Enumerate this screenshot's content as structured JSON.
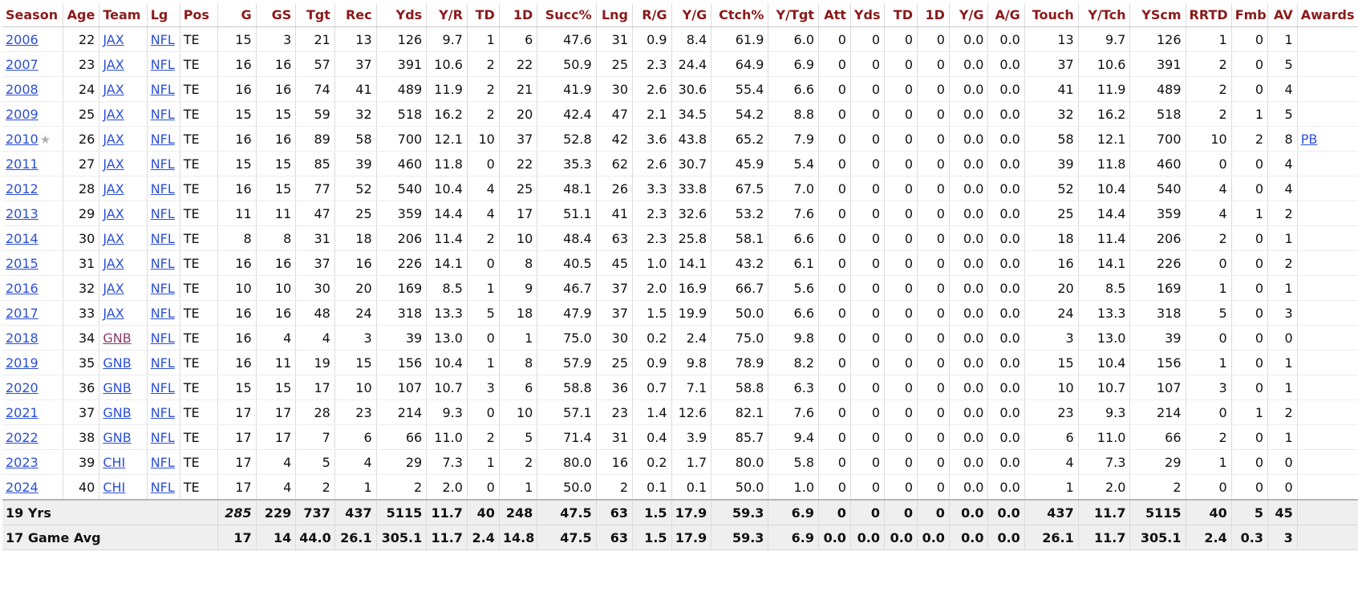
{
  "columns": [
    "Season",
    "Age",
    "Team",
    "Lg",
    "Pos",
    "G",
    "GS",
    "Tgt",
    "Rec",
    "Yds",
    "Y/R",
    "TD",
    "1D",
    "Succ%",
    "Lng",
    "R/G",
    "Y/G",
    "Ctch%",
    "Y/Tgt",
    "Att",
    "Yds",
    "TD",
    "1D",
    "Y/G",
    "A/G",
    "Touch",
    "Y/Tch",
    "YScm",
    "RRTD",
    "Fmb",
    "AV",
    "Awards"
  ],
  "rows": [
    {
      "season": "2006",
      "star": "",
      "age": "22",
      "team": "JAX",
      "lg": "NFL",
      "pos": "TE",
      "stats": [
        "15",
        "3",
        "21",
        "13",
        "126",
        "9.7",
        "1",
        "6",
        "47.6",
        "31",
        "0.9",
        "8.4",
        "61.9",
        "6.0",
        "0",
        "0",
        "0",
        "0",
        "0.0",
        "0.0",
        "13",
        "9.7",
        "126",
        "1",
        "0",
        "1"
      ],
      "awards": ""
    },
    {
      "season": "2007",
      "star": "",
      "age": "23",
      "team": "JAX",
      "lg": "NFL",
      "pos": "TE",
      "stats": [
        "16",
        "16",
        "57",
        "37",
        "391",
        "10.6",
        "2",
        "22",
        "50.9",
        "25",
        "2.3",
        "24.4",
        "64.9",
        "6.9",
        "0",
        "0",
        "0",
        "0",
        "0.0",
        "0.0",
        "37",
        "10.6",
        "391",
        "2",
        "0",
        "5"
      ],
      "awards": ""
    },
    {
      "season": "2008",
      "star": "",
      "age": "24",
      "team": "JAX",
      "lg": "NFL",
      "pos": "TE",
      "stats": [
        "16",
        "16",
        "74",
        "41",
        "489",
        "11.9",
        "2",
        "21",
        "41.9",
        "30",
        "2.6",
        "30.6",
        "55.4",
        "6.6",
        "0",
        "0",
        "0",
        "0",
        "0.0",
        "0.0",
        "41",
        "11.9",
        "489",
        "2",
        "0",
        "4"
      ],
      "awards": ""
    },
    {
      "season": "2009",
      "star": "",
      "age": "25",
      "team": "JAX",
      "lg": "NFL",
      "pos": "TE",
      "stats": [
        "15",
        "15",
        "59",
        "32",
        "518",
        "16.2",
        "2",
        "20",
        "42.4",
        "47",
        "2.1",
        "34.5",
        "54.2",
        "8.8",
        "0",
        "0",
        "0",
        "0",
        "0.0",
        "0.0",
        "32",
        "16.2",
        "518",
        "2",
        "1",
        "5"
      ],
      "awards": ""
    },
    {
      "season": "2010",
      "star": "★",
      "age": "26",
      "team": "JAX",
      "lg": "NFL",
      "pos": "TE",
      "stats": [
        "16",
        "16",
        "89",
        "58",
        "700",
        "12.1",
        "10",
        "37",
        "52.8",
        "42",
        "3.6",
        "43.8",
        "65.2",
        "7.9",
        "0",
        "0",
        "0",
        "0",
        "0.0",
        "0.0",
        "58",
        "12.1",
        "700",
        "10",
        "2",
        "8"
      ],
      "awards": "PB"
    },
    {
      "season": "2011",
      "star": "",
      "age": "27",
      "team": "JAX",
      "lg": "NFL",
      "pos": "TE",
      "stats": [
        "15",
        "15",
        "85",
        "39",
        "460",
        "11.8",
        "0",
        "22",
        "35.3",
        "62",
        "2.6",
        "30.7",
        "45.9",
        "5.4",
        "0",
        "0",
        "0",
        "0",
        "0.0",
        "0.0",
        "39",
        "11.8",
        "460",
        "0",
        "0",
        "4"
      ],
      "awards": ""
    },
    {
      "season": "2012",
      "star": "",
      "age": "28",
      "team": "JAX",
      "lg": "NFL",
      "pos": "TE",
      "stats": [
        "16",
        "15",
        "77",
        "52",
        "540",
        "10.4",
        "4",
        "25",
        "48.1",
        "26",
        "3.3",
        "33.8",
        "67.5",
        "7.0",
        "0",
        "0",
        "0",
        "0",
        "0.0",
        "0.0",
        "52",
        "10.4",
        "540",
        "4",
        "0",
        "4"
      ],
      "awards": ""
    },
    {
      "season": "2013",
      "star": "",
      "age": "29",
      "team": "JAX",
      "lg": "NFL",
      "pos": "TE",
      "stats": [
        "11",
        "11",
        "47",
        "25",
        "359",
        "14.4",
        "4",
        "17",
        "51.1",
        "41",
        "2.3",
        "32.6",
        "53.2",
        "7.6",
        "0",
        "0",
        "0",
        "0",
        "0.0",
        "0.0",
        "25",
        "14.4",
        "359",
        "4",
        "1",
        "2"
      ],
      "awards": ""
    },
    {
      "season": "2014",
      "star": "",
      "age": "30",
      "team": "JAX",
      "lg": "NFL",
      "pos": "TE",
      "stats": [
        "8",
        "8",
        "31",
        "18",
        "206",
        "11.4",
        "2",
        "10",
        "48.4",
        "63",
        "2.3",
        "25.8",
        "58.1",
        "6.6",
        "0",
        "0",
        "0",
        "0",
        "0.0",
        "0.0",
        "18",
        "11.4",
        "206",
        "2",
        "0",
        "1"
      ],
      "awards": ""
    },
    {
      "season": "2015",
      "star": "",
      "age": "31",
      "team": "JAX",
      "lg": "NFL",
      "pos": "TE",
      "stats": [
        "16",
        "16",
        "37",
        "16",
        "226",
        "14.1",
        "0",
        "8",
        "40.5",
        "45",
        "1.0",
        "14.1",
        "43.2",
        "6.1",
        "0",
        "0",
        "0",
        "0",
        "0.0",
        "0.0",
        "16",
        "14.1",
        "226",
        "0",
        "0",
        "2"
      ],
      "awards": ""
    },
    {
      "season": "2016",
      "star": "",
      "age": "32",
      "team": "JAX",
      "lg": "NFL",
      "pos": "TE",
      "stats": [
        "10",
        "10",
        "30",
        "20",
        "169",
        "8.5",
        "1",
        "9",
        "46.7",
        "37",
        "2.0",
        "16.9",
        "66.7",
        "5.6",
        "0",
        "0",
        "0",
        "0",
        "0.0",
        "0.0",
        "20",
        "8.5",
        "169",
        "1",
        "0",
        "1"
      ],
      "awards": ""
    },
    {
      "season": "2017",
      "star": "",
      "age": "33",
      "team": "JAX",
      "lg": "NFL",
      "pos": "TE",
      "stats": [
        "16",
        "16",
        "48",
        "24",
        "318",
        "13.3",
        "5",
        "18",
        "47.9",
        "37",
        "1.5",
        "19.9",
        "50.0",
        "6.6",
        "0",
        "0",
        "0",
        "0",
        "0.0",
        "0.0",
        "24",
        "13.3",
        "318",
        "5",
        "0",
        "3"
      ],
      "awards": ""
    },
    {
      "season": "2018",
      "star": "",
      "age": "34",
      "team": "GNB",
      "team_visited": true,
      "lg": "NFL",
      "pos": "TE",
      "stats": [
        "16",
        "4",
        "4",
        "3",
        "39",
        "13.0",
        "0",
        "1",
        "75.0",
        "30",
        "0.2",
        "2.4",
        "75.0",
        "9.8",
        "0",
        "0",
        "0",
        "0",
        "0.0",
        "0.0",
        "3",
        "13.0",
        "39",
        "0",
        "0",
        "0"
      ],
      "awards": ""
    },
    {
      "season": "2019",
      "star": "",
      "age": "35",
      "team": "GNB",
      "lg": "NFL",
      "pos": "TE",
      "stats": [
        "16",
        "11",
        "19",
        "15",
        "156",
        "10.4",
        "1",
        "8",
        "57.9",
        "25",
        "0.9",
        "9.8",
        "78.9",
        "8.2",
        "0",
        "0",
        "0",
        "0",
        "0.0",
        "0.0",
        "15",
        "10.4",
        "156",
        "1",
        "0",
        "1"
      ],
      "awards": ""
    },
    {
      "season": "2020",
      "star": "",
      "age": "36",
      "team": "GNB",
      "lg": "NFL",
      "pos": "TE",
      "stats": [
        "15",
        "15",
        "17",
        "10",
        "107",
        "10.7",
        "3",
        "6",
        "58.8",
        "36",
        "0.7",
        "7.1",
        "58.8",
        "6.3",
        "0",
        "0",
        "0",
        "0",
        "0.0",
        "0.0",
        "10",
        "10.7",
        "107",
        "3",
        "0",
        "1"
      ],
      "awards": ""
    },
    {
      "season": "2021",
      "star": "",
      "age": "37",
      "team": "GNB",
      "lg": "NFL",
      "pos": "TE",
      "stats": [
        "17",
        "17",
        "28",
        "23",
        "214",
        "9.3",
        "0",
        "10",
        "57.1",
        "23",
        "1.4",
        "12.6",
        "82.1",
        "7.6",
        "0",
        "0",
        "0",
        "0",
        "0.0",
        "0.0",
        "23",
        "9.3",
        "214",
        "0",
        "1",
        "2"
      ],
      "awards": ""
    },
    {
      "season": "2022",
      "star": "",
      "age": "38",
      "team": "GNB",
      "lg": "NFL",
      "pos": "TE",
      "stats": [
        "17",
        "17",
        "7",
        "6",
        "66",
        "11.0",
        "2",
        "5",
        "71.4",
        "31",
        "0.4",
        "3.9",
        "85.7",
        "9.4",
        "0",
        "0",
        "0",
        "0",
        "0.0",
        "0.0",
        "6",
        "11.0",
        "66",
        "2",
        "0",
        "1"
      ],
      "awards": ""
    },
    {
      "season": "2023",
      "star": "",
      "age": "39",
      "team": "CHI",
      "lg": "NFL",
      "pos": "TE",
      "stats": [
        "17",
        "4",
        "5",
        "4",
        "29",
        "7.3",
        "1",
        "2",
        "80.0",
        "16",
        "0.2",
        "1.7",
        "80.0",
        "5.8",
        "0",
        "0",
        "0",
        "0",
        "0.0",
        "0.0",
        "4",
        "7.3",
        "29",
        "1",
        "0",
        "0"
      ],
      "awards": ""
    },
    {
      "season": "2024",
      "star": "",
      "age": "40",
      "team": "CHI",
      "lg": "NFL",
      "pos": "TE",
      "stats": [
        "17",
        "4",
        "2",
        "1",
        "2",
        "2.0",
        "0",
        "1",
        "50.0",
        "2",
        "0.1",
        "0.1",
        "50.0",
        "1.0",
        "0",
        "0",
        "0",
        "0",
        "0.0",
        "0.0",
        "1",
        "2.0",
        "2",
        "0",
        "0",
        "0"
      ],
      "awards": ""
    }
  ],
  "totals": [
    {
      "label": "19 Yrs",
      "stats": [
        "285",
        "229",
        "737",
        "437",
        "5115",
        "11.7",
        "40",
        "248",
        "47.5",
        "63",
        "1.5",
        "17.9",
        "59.3",
        "6.9",
        "0",
        "0",
        "0",
        "0",
        "0.0",
        "0.0",
        "437",
        "11.7",
        "5115",
        "40",
        "5",
        "45"
      ],
      "g_italic": true
    },
    {
      "label": "17 Game Avg",
      "stats": [
        "17",
        "14",
        "44.0",
        "26.1",
        "305.1",
        "11.7",
        "2.4",
        "14.8",
        "47.5",
        "63",
        "1.5",
        "17.9",
        "59.3",
        "6.9",
        "0.0",
        "0.0",
        "0.0",
        "0.0",
        "0.0",
        "0.0",
        "26.1",
        "11.7",
        "305.1",
        "2.4",
        "0.3",
        "3"
      ],
      "g_italic": false
    }
  ],
  "colors": {
    "header_text": "#8b1a1a",
    "link": "#2b4fd4",
    "visited_link": "#8a3a6a",
    "footer_bg": "#efefef"
  }
}
